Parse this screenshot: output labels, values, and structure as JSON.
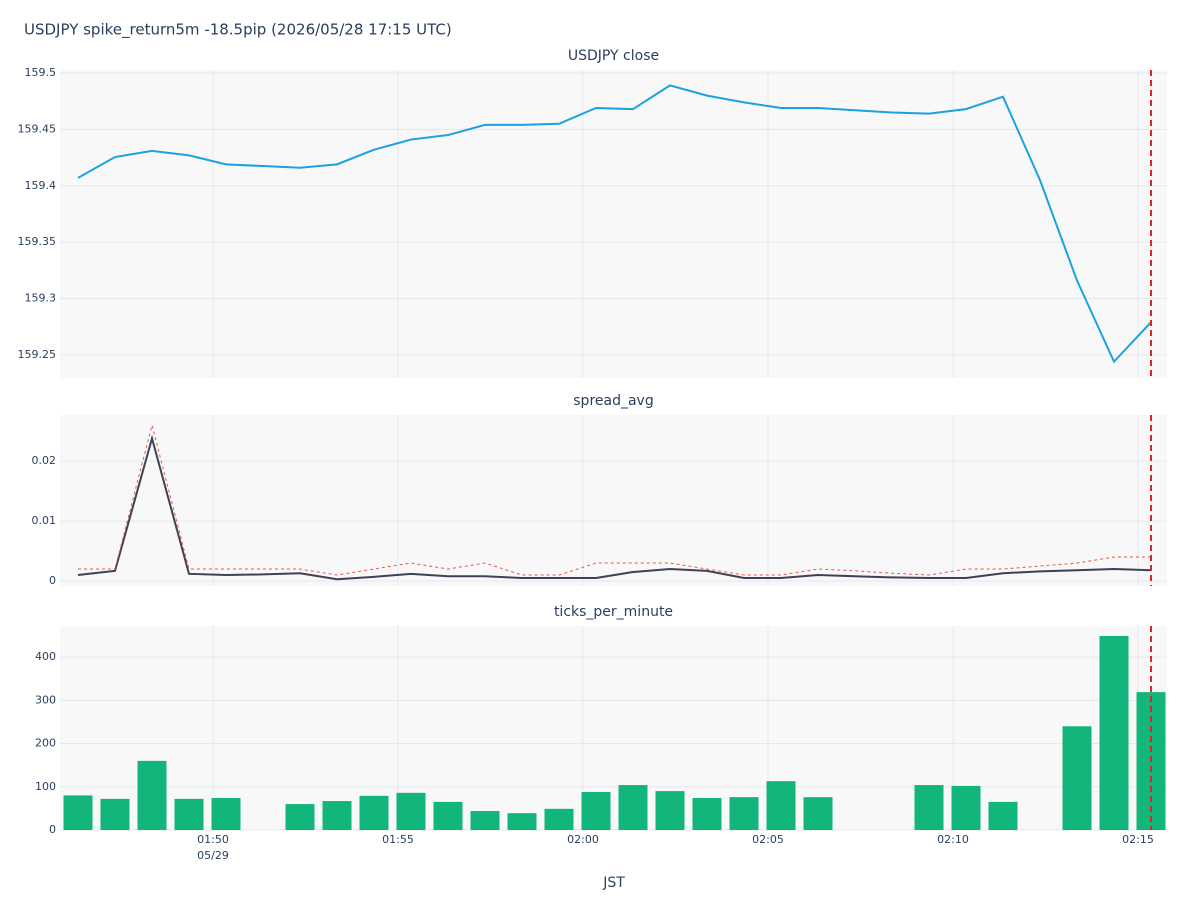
{
  "title": "USDJPY spike_return5m -18.5pip (2026/05/28 17:15 UTC)",
  "x_label": "JST",
  "x_date": "05/29",
  "vline_x": "02:15",
  "vline_color": "#d62728",
  "chart_data": [
    {
      "type": "line",
      "title": "USDJPY close",
      "x": [
        "01:46",
        "01:47",
        "01:48",
        "01:49",
        "01:50",
        "01:51",
        "01:52",
        "01:53",
        "01:54",
        "01:55",
        "01:56",
        "01:57",
        "01:58",
        "01:59",
        "02:00",
        "02:01",
        "02:02",
        "02:03",
        "02:04",
        "02:05",
        "02:06",
        "02:07",
        "02:08",
        "02:09",
        "02:10",
        "02:11",
        "02:12",
        "02:13",
        "02:14",
        "02:15"
      ],
      "series": [
        {
          "color": "#1ba1e2",
          "dash": "solid",
          "values": [
            159.407,
            159.4255,
            159.431,
            159.427,
            159.419,
            159.4175,
            159.416,
            159.419,
            159.432,
            159.441,
            159.445,
            159.454,
            159.454,
            159.455,
            159.469,
            159.468,
            159.489,
            159.48,
            159.474,
            159.469,
            159.469,
            159.467,
            159.465,
            159.464,
            159.468,
            159.479,
            159.405,
            159.316,
            159.244,
            159.279
          ]
        }
      ],
      "ylim": [
        159.2295,
        159.5027
      ],
      "yticks": [
        159.25,
        159.3,
        159.35,
        159.4,
        159.45,
        159.5
      ],
      "grid": true
    },
    {
      "type": "line",
      "title": "spread_avg",
      "x": [
        "01:46",
        "01:47",
        "01:48",
        "01:49",
        "01:50",
        "01:51",
        "01:52",
        "01:53",
        "01:54",
        "01:55",
        "01:56",
        "01:57",
        "01:58",
        "01:59",
        "02:00",
        "02:01",
        "02:02",
        "02:03",
        "02:04",
        "02:05",
        "02:06",
        "02:07",
        "02:08",
        "02:09",
        "02:10",
        "02:11",
        "02:12",
        "02:13",
        "02:14",
        "02:15"
      ],
      "series": [
        {
          "color": "#3d4257",
          "dash": "solid",
          "values": [
            0.001,
            0.0017,
            0.0238,
            0.0012,
            0.001,
            0.0011,
            0.0013,
            0.0003,
            0.0007,
            0.0012,
            0.0008,
            0.0008,
            0.0005,
            0.0005,
            0.0005,
            0.0015,
            0.002,
            0.0017,
            0.0005,
            0.0005,
            0.001,
            0.0008,
            0.0006,
            0.0005,
            0.0005,
            0.0013,
            0.0016,
            0.0018,
            0.002,
            0.0018
          ]
        },
        {
          "color": "#e8554e",
          "dash": "dotted",
          "values": [
            0.002,
            0.002,
            0.026,
            0.002,
            0.002,
            0.002,
            0.002,
            0.001,
            0.002,
            0.003,
            0.002,
            0.003,
            0.001,
            0.001,
            0.003,
            0.003,
            0.003,
            0.002,
            0.001,
            0.001,
            0.002,
            0.0017,
            0.0013,
            0.001,
            0.002,
            0.002,
            0.0025,
            0.003,
            0.004,
            0.004
          ]
        }
      ],
      "ylim": [
        -0.00083,
        0.0277
      ],
      "yticks": [
        0,
        0.01,
        0.02
      ],
      "grid": true
    },
    {
      "type": "bar",
      "title": "ticks_per_minute",
      "x": [
        "01:46",
        "01:47",
        "01:48",
        "01:49",
        "01:50",
        "01:51",
        "01:52",
        "01:53",
        "01:54",
        "01:55",
        "01:56",
        "01:57",
        "01:58",
        "01:59",
        "02:00",
        "02:01",
        "02:02",
        "02:03",
        "02:04",
        "02:05",
        "02:06",
        "02:07",
        "02:08",
        "02:09",
        "02:10",
        "02:11",
        "02:12",
        "02:13",
        "02:14",
        "02:15"
      ],
      "series": [
        {
          "color": "#12b67a",
          "values": [
            80,
            72,
            160,
            72,
            74,
            null,
            60,
            67,
            79,
            86,
            65,
            44,
            39,
            49,
            88,
            104,
            90,
            74,
            76,
            113,
            76,
            null,
            null,
            104,
            102,
            65,
            null,
            240,
            449,
            319
          ]
        }
      ],
      "ylim": [
        0,
        472
      ],
      "yticks": [
        0,
        100,
        200,
        300,
        400
      ],
      "xticks": [
        "01:50",
        "01:55",
        "02:00",
        "02:05",
        "02:10",
        "02:15"
      ],
      "grid": true
    }
  ]
}
